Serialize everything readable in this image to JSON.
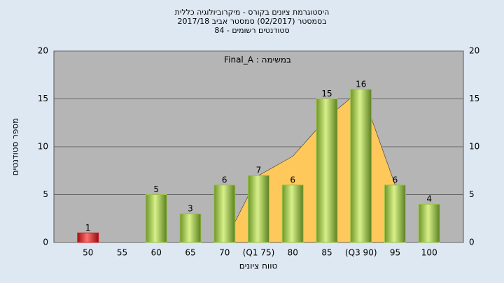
{
  "chart_data": {
    "type": "bar",
    "title": [
      "היסטוגרמת ציונים בקורס - מיקרוביולוגיה כללית",
      "בסמסטר  (02/2017)  סמסטר אביב 2017/18",
      "סטודנטים רשומים - 84"
    ],
    "annotation": "Final_A : במשימה",
    "x_label": "טווח ציונים",
    "y_label": "מספר סטודנטים",
    "categories": [
      "50",
      "55",
      "60",
      "65",
      "70",
      "(Q1 75)",
      "80",
      "85",
      "(Q3 90)",
      "95",
      "100"
    ],
    "values": [
      1,
      null,
      5,
      3,
      6,
      7,
      6,
      15,
      16,
      6,
      4
    ],
    "colors": [
      "#d42020",
      "#9cc24a",
      "#9cc24a",
      "#9cc24a",
      "#9cc24a",
      "#9cc24a",
      "#9cc24a",
      "#9cc24a",
      "#9cc24a",
      "#9cc24a",
      "#9cc24a"
    ],
    "area_values": [
      null,
      null,
      null,
      null,
      0,
      7,
      9,
      13,
      16,
      6,
      null
    ],
    "area_color": "#ffc85a",
    "ylim": [
      0,
      20
    ],
    "yticks": [
      0,
      5,
      10,
      15,
      20
    ],
    "grid": true
  }
}
